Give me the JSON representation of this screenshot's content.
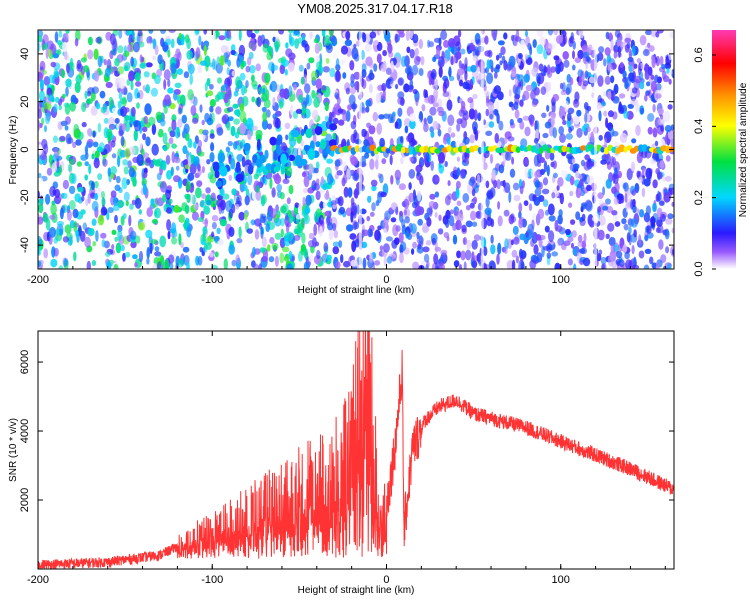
{
  "title": "YM08.2025.317.04.17.R18",
  "chart_data": [
    {
      "type": "heatmap",
      "xlabel": "Height of straight line (km)",
      "ylabel": "Frequency (Hz)",
      "xlim": [
        -200,
        165
      ],
      "ylim": [
        -50,
        50
      ],
      "xticks": [
        -200,
        -100,
        0,
        100
      ],
      "yticks": [
        -40,
        -20,
        0,
        20,
        40
      ],
      "colorbar": {
        "label": "Normalized spectral amplitude",
        "range": [
          0.0,
          0.67
        ],
        "ticks": [
          "0.0",
          "0.2",
          "0.4",
          "0.6"
        ],
        "colors": [
          "#ffffff",
          "#9a5cff",
          "#2a1aff",
          "#00d8ff",
          "#00e040",
          "#ffff00",
          "#ff9900",
          "#ff0000",
          "#ff3cb4"
        ]
      },
      "features": {
        "signal_track": {
          "x_start": -30,
          "x_end": 165,
          "frequency": 0
        },
        "drift_track": {
          "x_start": -100,
          "x_end": -30,
          "frequency_start": -10,
          "frequency_end": 5
        }
      }
    },
    {
      "type": "line",
      "xlabel": "Height of straight line (km)",
      "ylabel": "SNR (10 * v/v)",
      "xlim": [
        -200,
        165
      ],
      "ylim": [
        0,
        6900
      ],
      "xticks": [
        -200,
        -100,
        0,
        100
      ],
      "yticks": [
        2000,
        4000,
        6000
      ],
      "series": [
        {
          "color": "#ff3333",
          "points": [
            [
              -200,
              120
            ],
            [
              -160,
              200
            ],
            [
              -130,
              400
            ],
            [
              -110,
              900
            ],
            [
              -90,
              1300
            ],
            [
              -70,
              1800
            ],
            [
              -55,
              2300
            ],
            [
              -40,
              2500
            ],
            [
              -28,
              2900
            ],
            [
              -20,
              3600
            ],
            [
              -14,
              5600
            ],
            [
              -12,
              6900
            ],
            [
              -8,
              4200
            ],
            [
              -4,
              1200
            ],
            [
              0,
              1800
            ],
            [
              5,
              3600
            ],
            [
              9,
              5800
            ],
            [
              10,
              1100
            ],
            [
              15,
              3500
            ],
            [
              22,
              4300
            ],
            [
              30,
              4700
            ],
            [
              40,
              4900
            ],
            [
              50,
              4500
            ],
            [
              80,
              4100
            ],
            [
              100,
              3700
            ],
            [
              120,
              3300
            ],
            [
              140,
              2900
            ],
            [
              165,
              2300
            ]
          ]
        }
      ]
    }
  ]
}
